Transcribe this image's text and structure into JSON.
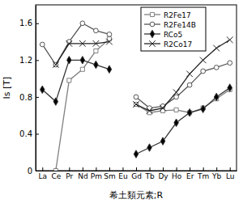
{
  "chart_data": {
    "type": "line",
    "x_label": "希土類元素;R",
    "y_label": "Is [T]",
    "categories": [
      "La",
      "Ce",
      "Pr",
      "Nd",
      "Pm",
      "Sm",
      "Eu",
      "Gd",
      "Tb",
      "Dy",
      "Ho",
      "Er",
      "Tm",
      "Yb",
      "Lu"
    ],
    "ylim": [
      0,
      1.8
    ],
    "yticks": [
      0,
      0.4,
      0.8,
      1.2,
      1.6
    ],
    "grid": false,
    "legend": "upper right",
    "series": [
      {
        "name": "R2Fe17",
        "color": "#808080",
        "marker": "square",
        "values": [
          null,
          0,
          0.98,
          1.1,
          1.3,
          1.43,
          null,
          0.72,
          0.63,
          0.65,
          0.66,
          0.63,
          0.68,
          0.78,
          0.88
        ]
      },
      {
        "name": "R2Fe14B",
        "color": "#555555",
        "marker": "circle",
        "values": [
          1.37,
          1.15,
          1.4,
          1.6,
          1.52,
          1.48,
          null,
          0.8,
          0.68,
          0.7,
          0.8,
          0.93,
          1.08,
          1.12,
          1.17
        ]
      },
      {
        "name": "RCo5",
        "color": "#333333",
        "marker": "diamond",
        "values": [
          0.88,
          0.75,
          1.2,
          1.2,
          1.15,
          1.1,
          null,
          0.18,
          0.25,
          0.32,
          0.52,
          0.63,
          0.67,
          0.8,
          0.9
        ]
      },
      {
        "name": "R2Co17",
        "color": "#222222",
        "marker": "x",
        "values": [
          null,
          1.15,
          1.38,
          1.38,
          1.38,
          1.4,
          null,
          0.72,
          0.65,
          0.68,
          0.85,
          1.05,
          1.2,
          1.33,
          1.42
        ]
      }
    ]
  }
}
